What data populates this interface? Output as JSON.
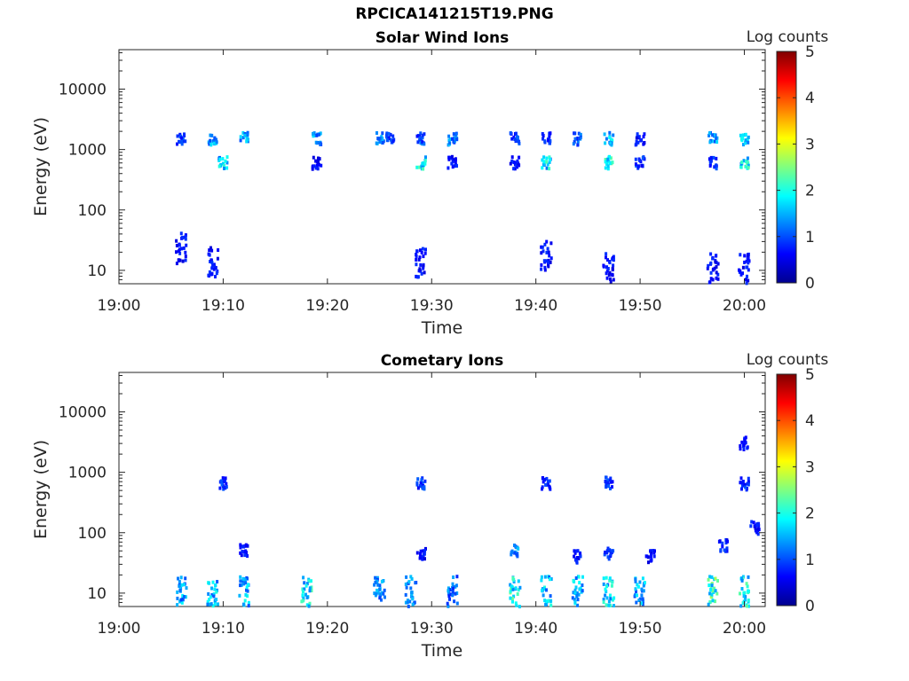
{
  "figure": {
    "filename": "RPCICA141215T19.PNG"
  },
  "colorbar": {
    "label": "Log counts",
    "ticks": [
      "5",
      "4",
      "3",
      "2",
      "1",
      "0"
    ],
    "colormap": "jet"
  },
  "chart_data": [
    {
      "type": "heatmap",
      "title": "Solar Wind Ions",
      "xlabel": "Time",
      "ylabel": "Energy (eV)",
      "x_ticks": [
        "19:00",
        "19:10",
        "19:20",
        "19:30",
        "19:40",
        "19:50",
        "20:00"
      ],
      "y_ticks": [
        "10",
        "100",
        "1000",
        "10000"
      ],
      "xlim": [
        "19:00",
        "20:02"
      ],
      "ylim": [
        6,
        45000
      ],
      "yscale": "log",
      "color_range": [
        0,
        5
      ],
      "clusters": [
        {
          "t": "19:06",
          "e": 1500,
          "c": 1.0
        },
        {
          "t": "19:06",
          "e": 26,
          "c": 0.8
        },
        {
          "t": "19:09",
          "e": 1500,
          "c": 1.6
        },
        {
          "t": "19:10",
          "e": 600,
          "c": 2.0
        },
        {
          "t": "19:09",
          "e": 15,
          "c": 0.8
        },
        {
          "t": "19:12",
          "e": 1500,
          "c": 1.8
        },
        {
          "t": "19:19",
          "e": 1500,
          "c": 1.6
        },
        {
          "t": "19:19",
          "e": 600,
          "c": 0.8
        },
        {
          "t": "19:25",
          "e": 1500,
          "c": 1.5
        },
        {
          "t": "19:26",
          "e": 1500,
          "c": 1.2
        },
        {
          "t": "19:29",
          "e": 600,
          "c": 2.2
        },
        {
          "t": "19:29",
          "e": 1500,
          "c": 1.2
        },
        {
          "t": "19:32",
          "e": 1500,
          "c": 1.6
        },
        {
          "t": "19:32",
          "e": 600,
          "c": 0.8
        },
        {
          "t": "19:29",
          "e": 15,
          "c": 0.8
        },
        {
          "t": "19:38",
          "e": 600,
          "c": 0.9
        },
        {
          "t": "19:38",
          "e": 1500,
          "c": 1.1
        },
        {
          "t": "19:41",
          "e": 600,
          "c": 2.1
        },
        {
          "t": "19:41",
          "e": 1500,
          "c": 1.0
        },
        {
          "t": "19:41",
          "e": 20,
          "c": 0.8
        },
        {
          "t": "19:44",
          "e": 1500,
          "c": 1.2
        },
        {
          "t": "19:47",
          "e": 600,
          "c": 2.3
        },
        {
          "t": "19:47",
          "e": 1500,
          "c": 1.8
        },
        {
          "t": "19:47",
          "e": 12,
          "c": 0.8
        },
        {
          "t": "19:50",
          "e": 600,
          "c": 1.0
        },
        {
          "t": "19:50",
          "e": 1500,
          "c": 0.8
        },
        {
          "t": "19:57",
          "e": 1500,
          "c": 1.8
        },
        {
          "t": "19:57",
          "e": 600,
          "c": 1.0
        },
        {
          "t": "19:57",
          "e": 12,
          "c": 0.8
        },
        {
          "t": "20:00",
          "e": 1500,
          "c": 1.9
        },
        {
          "t": "20:00",
          "e": 600,
          "c": 2.2
        },
        {
          "t": "20:00",
          "e": 12,
          "c": 0.8
        }
      ]
    },
    {
      "type": "heatmap",
      "title": "Cometary Ions",
      "xlabel": "Time",
      "ylabel": "Energy (eV)",
      "x_ticks": [
        "19:00",
        "19:10",
        "19:20",
        "19:30",
        "19:40",
        "19:50",
        "20:00"
      ],
      "y_ticks": [
        "10",
        "100",
        "1000",
        "10000"
      ],
      "xlim": [
        "19:00",
        "20:02"
      ],
      "ylim": [
        6,
        45000
      ],
      "yscale": "log",
      "color_range": [
        0,
        5
      ],
      "clusters": [
        {
          "t": "19:06",
          "e": 12,
          "c": 1.7
        },
        {
          "t": "19:09",
          "e": 12,
          "c": 1.9
        },
        {
          "t": "19:10",
          "e": 650,
          "c": 1.0
        },
        {
          "t": "19:12",
          "e": 12,
          "c": 1.8
        },
        {
          "t": "19:12",
          "e": 50,
          "c": 0.8
        },
        {
          "t": "19:18",
          "e": 12,
          "c": 2.1
        },
        {
          "t": "19:25",
          "e": 12,
          "c": 1.5
        },
        {
          "t": "19:28",
          "e": 12,
          "c": 1.6
        },
        {
          "t": "19:29",
          "e": 650,
          "c": 1.0
        },
        {
          "t": "19:29",
          "e": 45,
          "c": 0.8
        },
        {
          "t": "19:32",
          "e": 12,
          "c": 1.4
        },
        {
          "t": "19:38",
          "e": 12,
          "c": 2.3
        },
        {
          "t": "19:38",
          "e": 50,
          "c": 1.5
        },
        {
          "t": "19:41",
          "e": 12,
          "c": 1.9
        },
        {
          "t": "19:41",
          "e": 650,
          "c": 0.9
        },
        {
          "t": "19:44",
          "e": 12,
          "c": 1.8
        },
        {
          "t": "19:44",
          "e": 40,
          "c": 0.9
        },
        {
          "t": "19:47",
          "e": 12,
          "c": 2.0
        },
        {
          "t": "19:47",
          "e": 650,
          "c": 1.0
        },
        {
          "t": "19:47",
          "e": 45,
          "c": 1.0
        },
        {
          "t": "19:50",
          "e": 12,
          "c": 1.7
        },
        {
          "t": "19:51",
          "e": 40,
          "c": 0.8
        },
        {
          "t": "19:57",
          "e": 12,
          "c": 2.5
        },
        {
          "t": "19:58",
          "e": 60,
          "c": 0.9
        },
        {
          "t": "20:00",
          "e": 650,
          "c": 1.0
        },
        {
          "t": "20:00",
          "e": 12,
          "c": 2.2
        },
        {
          "t": "20:00",
          "e": 3000,
          "c": 0.8
        },
        {
          "t": "20:01",
          "e": 120,
          "c": 0.8
        }
      ]
    }
  ]
}
